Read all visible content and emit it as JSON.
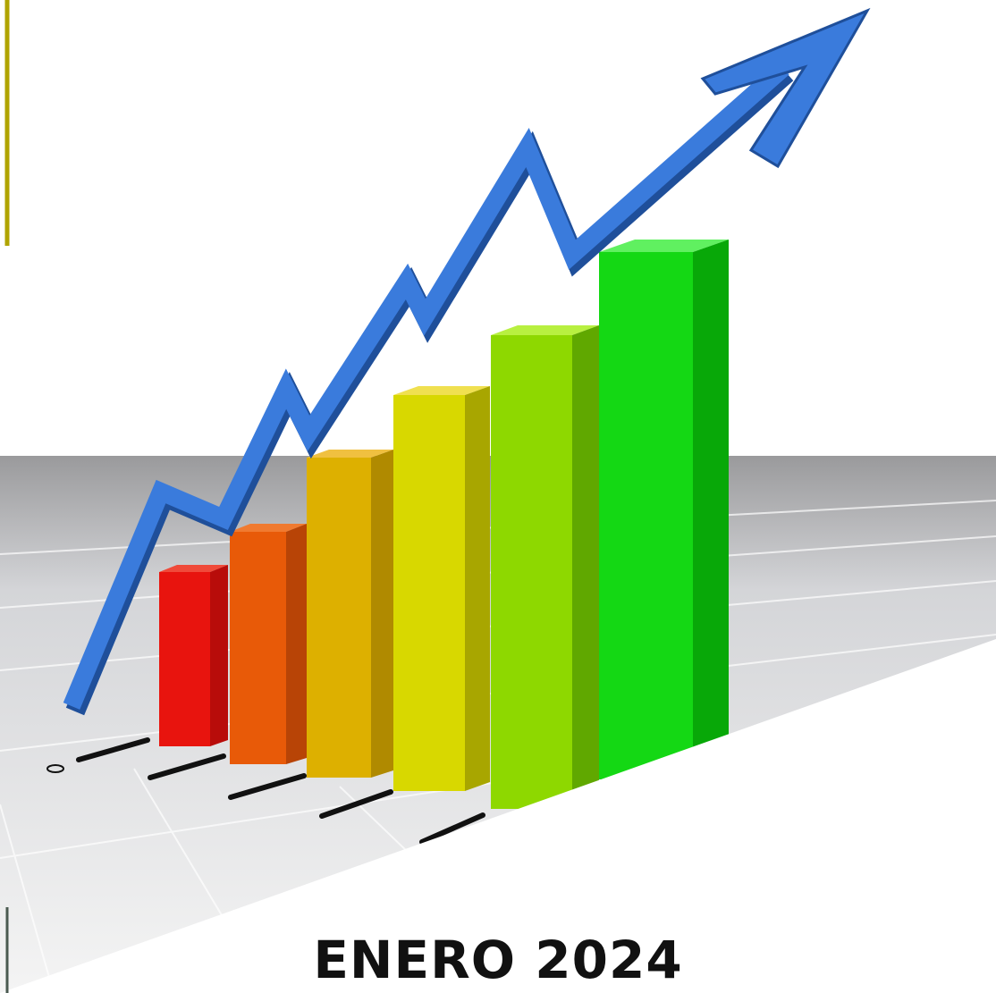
{
  "title": "ENERO 2024"
}
